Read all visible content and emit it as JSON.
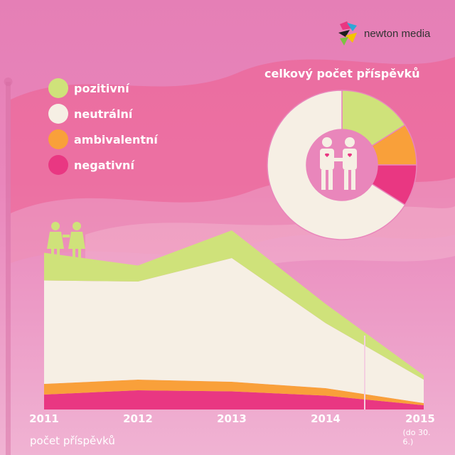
{
  "logo": {
    "text": "newton media",
    "icon": "newton-media-logo-icon"
  },
  "colors": {
    "pozitivni": "#cfe27a",
    "neutralni": "#f6efe4",
    "ambivalentni": "#f9a03a",
    "negativni": "#e93782"
  },
  "legend": [
    {
      "key": "pozitivni",
      "label": "pozitivní"
    },
    {
      "key": "neutralni",
      "label": "neutrální"
    },
    {
      "key": "ambivalentni",
      "label": "ambivalentní"
    },
    {
      "key": "negativni",
      "label": "negativní"
    }
  ],
  "chart_data": [
    {
      "type": "area",
      "stacked": true,
      "ylabel": "počet příspěvků",
      "x": [
        "2011",
        "2012",
        "2013",
        "2014",
        "2015"
      ],
      "x_note": "(do 30. 6.)",
      "yaxis_shown": false,
      "grid": false,
      "ylim": [
        0,
        160
      ],
      "series": [
        {
          "name": "negativní",
          "key": "negativni",
          "values": [
            14,
            18,
            17,
            13,
            4
          ]
        },
        {
          "name": "ambivalentní",
          "key": "ambivalentni",
          "values": [
            10,
            10,
            9,
            7,
            2
          ]
        },
        {
          "name": "neutrální",
          "key": "neutralni",
          "values": [
            97,
            92,
            116,
            61,
            22
          ]
        },
        {
          "name": "pozitivní",
          "key": "pozitivni",
          "values": [
            26,
            15,
            26,
            18,
            4
          ]
        }
      ]
    },
    {
      "type": "pie",
      "style": "donut",
      "title": "celkový počet příspěvků",
      "icon": "male-couple-icon",
      "slices": [
        {
          "name": "pozitivní",
          "key": "pozitivni",
          "value": 16
        },
        {
          "name": "ambivalentní",
          "key": "ambivalentni",
          "value": 9
        },
        {
          "name": "negativní",
          "key": "negativni",
          "value": 9
        },
        {
          "name": "neutrální",
          "key": "neutralni",
          "value": 66
        }
      ]
    }
  ],
  "area_icon": "female-couple-icon"
}
